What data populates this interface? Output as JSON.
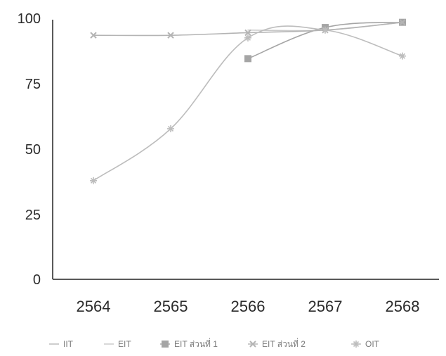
{
  "chart_data": {
    "type": "line",
    "x": [
      "2564",
      "2565",
      "2566",
      "2567",
      "2568"
    ],
    "ylim": [
      0,
      100
    ],
    "yticks": [
      "0",
      "25",
      "50",
      "75",
      "100"
    ],
    "grid": false,
    "legend_position": "bottom",
    "series": [
      {
        "name": "IIT",
        "color": "#b9b9b9",
        "marker": "none",
        "values": [
          null,
          null,
          null,
          null,
          null
        ]
      },
      {
        "name": "EIT",
        "color": "#c9c9c9",
        "marker": "none",
        "values": [
          null,
          null,
          96,
          96,
          99
        ]
      },
      {
        "name": "EIT ส่วนที่ 1",
        "color": "#a5a5a5",
        "marker": "square",
        "values": [
          null,
          null,
          85,
          97,
          99
        ]
      },
      {
        "name": "EIT ส่วนที่ 2",
        "color": "#b4b4b4",
        "marker": "x",
        "values": [
          94,
          94,
          95,
          96,
          99
        ]
      },
      {
        "name": "OIT",
        "color": "#bdbdbd",
        "marker": "star",
        "values": [
          38,
          58,
          93,
          96,
          86
        ]
      }
    ]
  }
}
